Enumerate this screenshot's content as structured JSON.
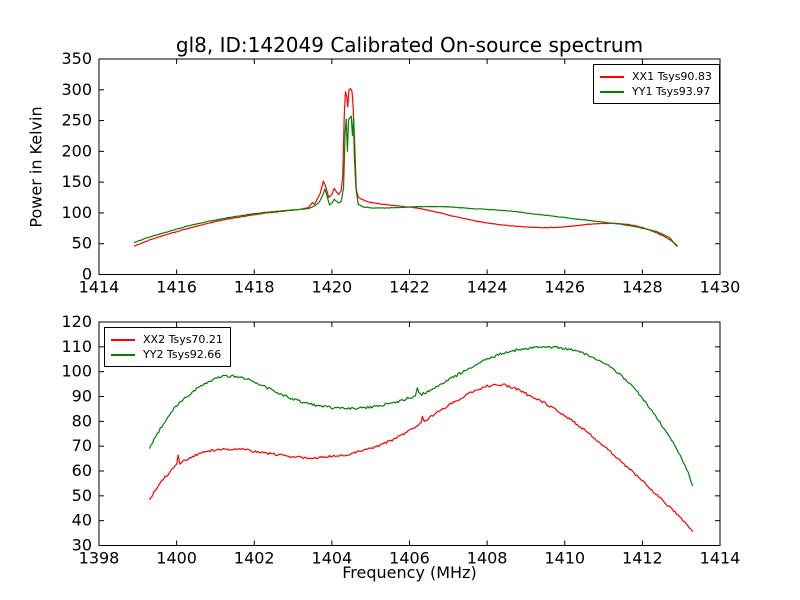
{
  "figure": {
    "background": "#ffffff",
    "axis_color": "#000000"
  },
  "chart_data": [
    {
      "type": "line",
      "title": "gl8, ID:142049 Calibrated On-source spectrum",
      "xlabel": "",
      "ylabel": "Power in Kelvin",
      "xlim": [
        1414,
        1430
      ],
      "ylim": [
        0,
        350
      ],
      "xticks": [
        1414,
        1416,
        1418,
        1420,
        1422,
        1424,
        1426,
        1428,
        1430
      ],
      "yticks": [
        0,
        50,
        100,
        150,
        200,
        250,
        300,
        350
      ],
      "grid": false,
      "legend_position": "upper right",
      "series": [
        {
          "name": "XX1 Tsys90.83",
          "color": "#ff0000",
          "noise": 0.4,
          "points": [
            [
              1414.9,
              46
            ],
            [
              1415.3,
              56
            ],
            [
              1415.8,
              66
            ],
            [
              1416.3,
              75
            ],
            [
              1416.8,
              83
            ],
            [
              1417.3,
              90
            ],
            [
              1417.8,
              95
            ],
            [
              1418.3,
              100
            ],
            [
              1418.8,
              103
            ],
            [
              1419.2,
              106
            ],
            [
              1419.4,
              109
            ],
            [
              1419.5,
              117
            ],
            [
              1419.55,
              114
            ],
            [
              1419.62,
              122
            ],
            [
              1419.7,
              132
            ],
            [
              1419.78,
              152
            ],
            [
              1419.84,
              143
            ],
            [
              1419.92,
              125
            ],
            [
              1420.0,
              130
            ],
            [
              1420.06,
              140
            ],
            [
              1420.12,
              134
            ],
            [
              1420.18,
              130
            ],
            [
              1420.24,
              136
            ],
            [
              1420.28,
              160
            ],
            [
              1420.32,
              260
            ],
            [
              1420.35,
              297
            ],
            [
              1420.38,
              290
            ],
            [
              1420.41,
              272
            ],
            [
              1420.44,
              300
            ],
            [
              1420.48,
              302
            ],
            [
              1420.52,
              297
            ],
            [
              1420.55,
              270
            ],
            [
              1420.58,
              190
            ],
            [
              1420.62,
              140
            ],
            [
              1420.68,
              126
            ],
            [
              1420.8,
              121
            ],
            [
              1421.0,
              117
            ],
            [
              1421.3,
              114
            ],
            [
              1421.6,
              112
            ],
            [
              1421.9,
              110
            ],
            [
              1422.2,
              108
            ],
            [
              1422.5,
              104
            ],
            [
              1422.8,
              100
            ],
            [
              1423.1,
              95
            ],
            [
              1423.4,
              91
            ],
            [
              1423.7,
              87
            ],
            [
              1424.0,
              84
            ],
            [
              1424.3,
              81
            ],
            [
              1424.6,
              79
            ],
            [
              1424.9,
              77.5
            ],
            [
              1425.2,
              76.5
            ],
            [
              1425.5,
              76
            ],
            [
              1425.8,
              76.5
            ],
            [
              1426.1,
              78
            ],
            [
              1426.4,
              80
            ],
            [
              1426.7,
              82
            ],
            [
              1427.0,
              83
            ],
            [
              1427.3,
              83
            ],
            [
              1427.6,
              81.5
            ],
            [
              1427.9,
              78
            ],
            [
              1428.2,
              72
            ],
            [
              1428.5,
              64
            ],
            [
              1428.7,
              57
            ],
            [
              1428.9,
              47
            ]
          ]
        },
        {
          "name": "YY1 Tsys93.97",
          "color": "#008000",
          "noise": 0.4,
          "points": [
            [
              1414.9,
              52
            ],
            [
              1415.3,
              61
            ],
            [
              1415.8,
              70
            ],
            [
              1416.3,
              79
            ],
            [
              1416.8,
              86
            ],
            [
              1417.3,
              92
            ],
            [
              1417.8,
              97
            ],
            [
              1418.3,
              101
            ],
            [
              1418.8,
              104
            ],
            [
              1419.2,
              106
            ],
            [
              1419.4,
              107
            ],
            [
              1419.5,
              110
            ],
            [
              1419.6,
              113
            ],
            [
              1419.68,
              118
            ],
            [
              1419.76,
              128
            ],
            [
              1419.82,
              139
            ],
            [
              1419.88,
              126
            ],
            [
              1419.94,
              113
            ],
            [
              1420.0,
              116
            ],
            [
              1420.06,
              122
            ],
            [
              1420.12,
              119
            ],
            [
              1420.18,
              116
            ],
            [
              1420.24,
              119
            ],
            [
              1420.3,
              140
            ],
            [
              1420.34,
              230
            ],
            [
              1420.37,
              252
            ],
            [
              1420.4,
              200
            ],
            [
              1420.43,
              251
            ],
            [
              1420.46,
              254
            ],
            [
              1420.5,
              257
            ],
            [
              1420.53,
              225
            ],
            [
              1420.56,
              255
            ],
            [
              1420.59,
              210
            ],
            [
              1420.63,
              135
            ],
            [
              1420.68,
              114
            ],
            [
              1420.8,
              110
            ],
            [
              1421.0,
              108
            ],
            [
              1421.4,
              108
            ],
            [
              1421.8,
              109
            ],
            [
              1422.2,
              110
            ],
            [
              1422.6,
              110.5
            ],
            [
              1423.0,
              110
            ],
            [
              1423.4,
              108
            ],
            [
              1423.8,
              106.5
            ],
            [
              1424.2,
              105
            ],
            [
              1424.6,
              103
            ],
            [
              1425.0,
              100
            ],
            [
              1425.4,
              97
            ],
            [
              1425.8,
              94
            ],
            [
              1426.2,
              91
            ],
            [
              1426.6,
              88
            ],
            [
              1427.0,
              85
            ],
            [
              1427.4,
              82
            ],
            [
              1427.8,
              78
            ],
            [
              1428.1,
              74
            ],
            [
              1428.4,
              69
            ],
            [
              1428.7,
              60
            ],
            [
              1428.9,
              45
            ]
          ]
        }
      ]
    },
    {
      "type": "line",
      "title": "",
      "xlabel": "Frequency (MHz)",
      "ylabel": "",
      "xlim": [
        1398,
        1414
      ],
      "ylim": [
        30,
        120
      ],
      "xticks": [
        1398,
        1400,
        1402,
        1404,
        1406,
        1408,
        1410,
        1412,
        1414
      ],
      "yticks": [
        30,
        40,
        50,
        60,
        70,
        80,
        90,
        100,
        110,
        120
      ],
      "grid": false,
      "legend_position": "upper left",
      "series": [
        {
          "name": "XX2 Tsys70.21",
          "color": "#ff0000",
          "noise": 0.5,
          "points": [
            [
              1399.3,
              48
            ],
            [
              1399.5,
              53.5
            ],
            [
              1399.7,
              57.5
            ],
            [
              1399.85,
              60
            ],
            [
              1400.0,
              62.5
            ],
            [
              1400.04,
              66
            ],
            [
              1400.08,
              62.8
            ],
            [
              1400.3,
              65
            ],
            [
              1400.6,
              67
            ],
            [
              1400.9,
              68.2
            ],
            [
              1401.2,
              68.8
            ],
            [
              1401.5,
              68.9
            ],
            [
              1401.8,
              68.4
            ],
            [
              1402.1,
              67.6
            ],
            [
              1402.4,
              66.9
            ],
            [
              1402.7,
              66.3
            ],
            [
              1403.0,
              65.8
            ],
            [
              1403.3,
              65.4
            ],
            [
              1403.6,
              65.4
            ],
            [
              1403.9,
              65.7
            ],
            [
              1404.2,
              66.2
            ],
            [
              1404.5,
              67
            ],
            [
              1404.8,
              68.1
            ],
            [
              1405.1,
              69.6
            ],
            [
              1405.4,
              71.4
            ],
            [
              1405.7,
              73.6
            ],
            [
              1406.0,
              76.2
            ],
            [
              1406.3,
              79.2
            ],
            [
              1406.33,
              82
            ],
            [
              1406.38,
              80
            ],
            [
              1406.6,
              82.3
            ],
            [
              1406.9,
              85.4
            ],
            [
              1407.2,
              88.3
            ],
            [
              1407.5,
              90.9
            ],
            [
              1407.8,
              93
            ],
            [
              1408.0,
              94.2
            ],
            [
              1408.2,
              94.9
            ],
            [
              1408.4,
              94.8
            ],
            [
              1408.6,
              94
            ],
            [
              1408.8,
              92.8
            ],
            [
              1409.0,
              91.2
            ],
            [
              1409.1,
              89.9
            ],
            [
              1409.25,
              89.3
            ],
            [
              1409.5,
              87.2
            ],
            [
              1409.8,
              84.5
            ],
            [
              1410.1,
              81.3
            ],
            [
              1410.4,
              77.8
            ],
            [
              1410.7,
              74
            ],
            [
              1411.0,
              70
            ],
            [
              1411.3,
              66
            ],
            [
              1411.6,
              61.8
            ],
            [
              1411.9,
              57.5
            ],
            [
              1412.2,
              53
            ],
            [
              1412.5,
              48.5
            ],
            [
              1412.8,
              44
            ],
            [
              1413.0,
              41
            ],
            [
              1413.2,
              37.5
            ],
            [
              1413.3,
              35.5
            ]
          ]
        },
        {
          "name": "YY2 Tsys92.66",
          "color": "#008000",
          "noise": 0.5,
          "points": [
            [
              1399.3,
              69
            ],
            [
              1399.5,
              75
            ],
            [
              1399.7,
              80
            ],
            [
              1399.9,
              84.5
            ],
            [
              1400.1,
              87.8
            ],
            [
              1400.4,
              91.8
            ],
            [
              1400.7,
              95
            ],
            [
              1401.0,
              97.3
            ],
            [
              1401.2,
              98.1
            ],
            [
              1401.45,
              98.2
            ],
            [
              1401.7,
              97.6
            ],
            [
              1402.0,
              96
            ],
            [
              1402.3,
              93.8
            ],
            [
              1402.6,
              91.6
            ],
            [
              1402.9,
              89.6
            ],
            [
              1403.2,
              88
            ],
            [
              1403.5,
              86.7
            ],
            [
              1403.8,
              85.9
            ],
            [
              1404.1,
              85.4
            ],
            [
              1404.4,
              85.2
            ],
            [
              1404.7,
              85.3
            ],
            [
              1405.0,
              85.8
            ],
            [
              1405.3,
              86.6
            ],
            [
              1405.6,
              87.6
            ],
            [
              1405.9,
              88.9
            ],
            [
              1406.15,
              90.1
            ],
            [
              1406.2,
              93.3
            ],
            [
              1406.28,
              90.7
            ],
            [
              1406.5,
              92.2
            ],
            [
              1406.8,
              94.8
            ],
            [
              1407.1,
              97.5
            ],
            [
              1407.4,
              100.2
            ],
            [
              1407.7,
              102.8
            ],
            [
              1408.0,
              105
            ],
            [
              1408.3,
              106.9
            ],
            [
              1408.6,
              108.2
            ],
            [
              1408.9,
              109.1
            ],
            [
              1409.2,
              109.7
            ],
            [
              1409.5,
              110
            ],
            [
              1409.8,
              109.8
            ],
            [
              1410.1,
              109.1
            ],
            [
              1410.4,
              107.9
            ],
            [
              1410.7,
              106
            ],
            [
              1411.0,
              103.6
            ],
            [
              1411.2,
              101.6
            ],
            [
              1411.4,
              99.2
            ],
            [
              1411.6,
              96.3
            ],
            [
              1411.8,
              93
            ],
            [
              1412.0,
              89.3
            ],
            [
              1412.3,
              83.2
            ],
            [
              1412.6,
              76.2
            ],
            [
              1412.9,
              68.5
            ],
            [
              1413.1,
              62.5
            ],
            [
              1413.3,
              54
            ]
          ]
        }
      ]
    }
  ]
}
